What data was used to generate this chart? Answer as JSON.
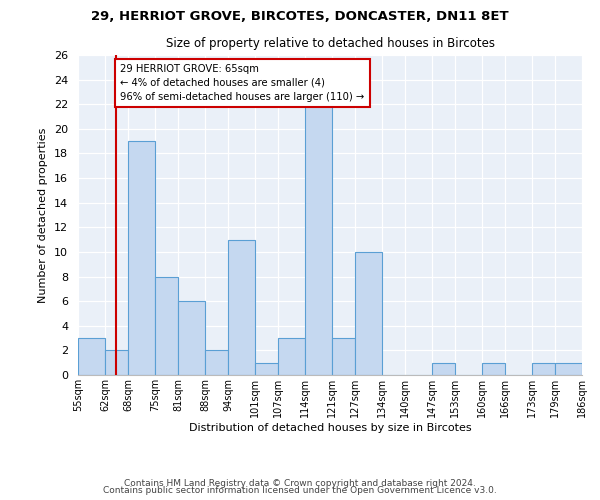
{
  "title1": "29, HERRIOT GROVE, BIRCOTES, DONCASTER, DN11 8ET",
  "title2": "Size of property relative to detached houses in Bircotes",
  "xlabel": "Distribution of detached houses by size in Bircotes",
  "ylabel": "Number of detached properties",
  "bin_edges": [
    55,
    62,
    68,
    75,
    81,
    88,
    94,
    101,
    107,
    114,
    121,
    127,
    134,
    140,
    147,
    153,
    160,
    166,
    173,
    179,
    186
  ],
  "counts": [
    3,
    2,
    19,
    8,
    6,
    2,
    11,
    1,
    3,
    22,
    3,
    10,
    0,
    0,
    1,
    0,
    1,
    0,
    1,
    1
  ],
  "bar_color": "#c5d8f0",
  "bar_edge_color": "#5a9fd4",
  "reference_line_x": 65,
  "reference_line_color": "#cc0000",
  "annotation_text": "29 HERRIOT GROVE: 65sqm\n← 4% of detached houses are smaller (4)\n96% of semi-detached houses are larger (110) →",
  "annotation_box_color": "#ffffff",
  "annotation_box_edge": "#cc0000",
  "ylim": [
    0,
    26
  ],
  "yticks": [
    0,
    2,
    4,
    6,
    8,
    10,
    12,
    14,
    16,
    18,
    20,
    22,
    24,
    26
  ],
  "footer1": "Contains HM Land Registry data © Crown copyright and database right 2024.",
  "footer2": "Contains public sector information licensed under the Open Government Licence v3.0.",
  "tick_labels": [
    "55sqm",
    "62sqm",
    "68sqm",
    "75sqm",
    "81sqm",
    "88sqm",
    "94sqm",
    "101sqm",
    "107sqm",
    "114sqm",
    "121sqm",
    "127sqm",
    "134sqm",
    "140sqm",
    "147sqm",
    "153sqm",
    "160sqm",
    "166sqm",
    "173sqm",
    "179sqm",
    "186sqm"
  ],
  "bg_color": "#eaf0f8"
}
